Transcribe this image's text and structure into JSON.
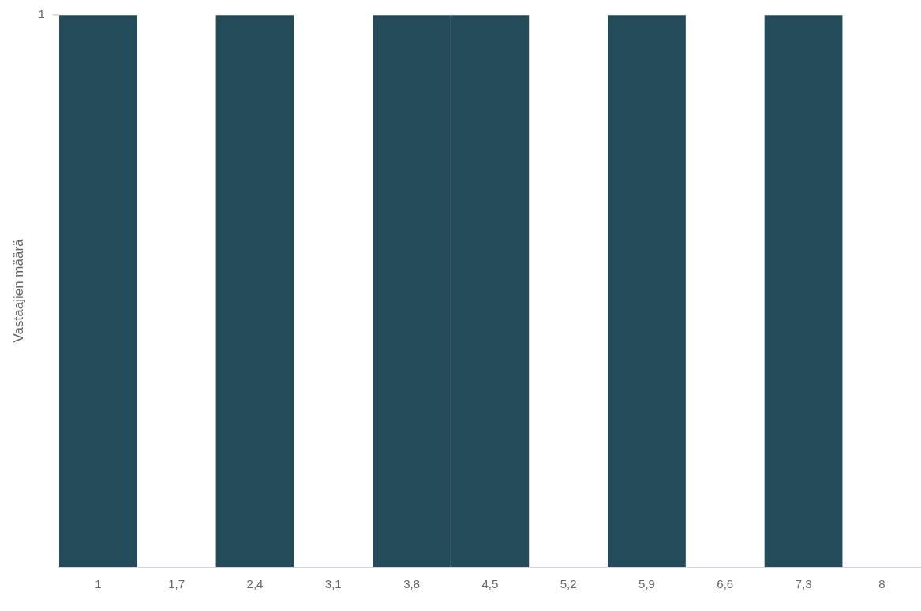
{
  "chart_data": {
    "type": "bar",
    "ylabel": "Vastaajien määrä",
    "categories": [
      "1",
      "1,7",
      "2,4",
      "3,1",
      "3,8",
      "4,5",
      "5,2",
      "5,9",
      "6,6",
      "7,3",
      "8"
    ],
    "values": [
      1,
      0,
      1,
      0,
      1,
      1,
      0,
      1,
      0,
      1,
      0
    ],
    "color": "#234b5a",
    "ylim": [
      0,
      1
    ],
    "yticks": [
      1
    ],
    "legend": false
  }
}
